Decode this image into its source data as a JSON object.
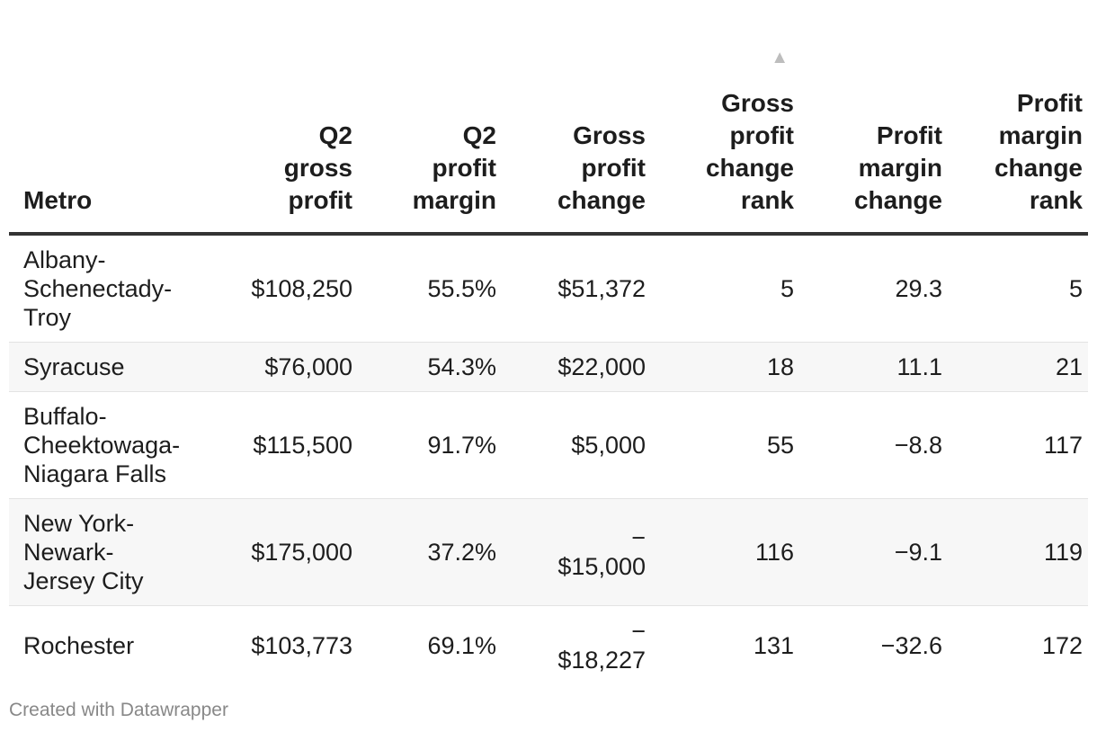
{
  "chart_data": {
    "type": "table",
    "sort": {
      "column": "gross_profit_change_rank",
      "direction": "ascending"
    },
    "columns": [
      {
        "key": "metro",
        "label": "Metro",
        "label_lines": [
          "Metro"
        ]
      },
      {
        "key": "q2_gross_profit",
        "label": "Q2 gross profit",
        "label_lines": [
          "Q2",
          "gross",
          "profit"
        ]
      },
      {
        "key": "q2_profit_margin",
        "label": "Q2 profit margin",
        "label_lines": [
          "Q2",
          "profit",
          "margin"
        ]
      },
      {
        "key": "gross_profit_change",
        "label": "Gross profit change",
        "label_lines": [
          "Gross",
          "profit",
          "change"
        ]
      },
      {
        "key": "gross_profit_change_rank",
        "label": "Gross profit change rank",
        "label_lines": [
          "Gross",
          "profit",
          "change",
          "rank"
        ]
      },
      {
        "key": "profit_margin_change",
        "label": "Profit margin change",
        "label_lines": [
          "Profit",
          "margin",
          "change"
        ]
      },
      {
        "key": "profit_margin_change_rank",
        "label": "Profit margin change rank",
        "label_lines": [
          "Profit",
          "margin",
          "change",
          "rank"
        ]
      }
    ],
    "rows": [
      {
        "metro": "Albany-Schenectady-Troy",
        "metro_lines": [
          "Albany-",
          "Schenectady-",
          "Troy"
        ],
        "q2_gross_profit": "$108,250",
        "q2_profit_margin": "55.5%",
        "gross_profit_change": "$51,372",
        "gross_profit_change_rank": "5",
        "profit_margin_change": "29.3",
        "profit_margin_change_rank": "5"
      },
      {
        "metro": "Syracuse",
        "metro_lines": [
          "Syracuse"
        ],
        "q2_gross_profit": "$76,000",
        "q2_profit_margin": "54.3%",
        "gross_profit_change": "$22,000",
        "gross_profit_change_rank": "18",
        "profit_margin_change": "11.1",
        "profit_margin_change_rank": "21"
      },
      {
        "metro": "Buffalo-Cheektowaga-Niagara Falls",
        "metro_lines": [
          "Buffalo-",
          "Cheektowaga-",
          "Niagara Falls"
        ],
        "q2_gross_profit": "$115,500",
        "q2_profit_margin": "91.7%",
        "gross_profit_change": "$5,000",
        "gross_profit_change_rank": "55",
        "profit_margin_change": "−8.8",
        "profit_margin_change_rank": "117"
      },
      {
        "metro": "New York-Newark-Jersey City",
        "metro_lines": [
          "New York-",
          "Newark-",
          "Jersey City"
        ],
        "q2_gross_profit": "$175,000",
        "q2_profit_margin": "37.2%",
        "gross_profit_change": "−$15,000",
        "gross_profit_change_rank": "116",
        "profit_margin_change": "−9.1",
        "profit_margin_change_rank": "119"
      },
      {
        "metro": "Rochester",
        "metro_lines": [
          "Rochester"
        ],
        "q2_gross_profit": "$103,773",
        "q2_profit_margin": "69.1%",
        "gross_profit_change": "−$18,227",
        "gross_profit_change_rank": "131",
        "profit_margin_change": "−32.6",
        "profit_margin_change_rank": "172"
      }
    ]
  },
  "footer": {
    "credit": "Created with Datawrapper"
  },
  "colors": {
    "text": "#1d1d1d",
    "header_rule": "#333333",
    "row_stripe": "#f7f7f7",
    "row_rule": "#e3e3e3",
    "footer": "#888888",
    "sort_arrow": "#bdbdbd"
  },
  "icons": {
    "sort": "sort-ascending-icon"
  }
}
